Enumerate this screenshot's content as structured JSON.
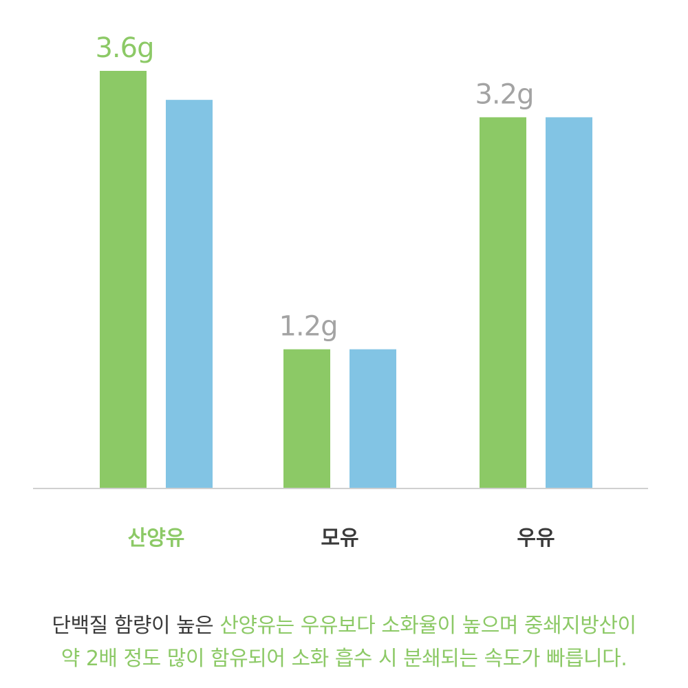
{
  "chart_data": {
    "type": "bar",
    "categories": [
      "산양유",
      "모유",
      "우유"
    ],
    "series": [
      {
        "values": [
          3.6,
          1.2,
          3.2
        ]
      },
      {
        "values": [
          3.35,
          1.2,
          3.2
        ]
      }
    ],
    "data_labels": [
      "3.6g",
      "1.2g",
      "3.2g"
    ],
    "ylim": [
      0,
      3.6
    ],
    "grid": false,
    "colors": {
      "series_1": "#8cc966",
      "series_2": "#82c4e4",
      "highlight_label": "#8cc966",
      "label": "#a3a3a3",
      "category_text": "#3a3a3a",
      "axis": "#d0d0d0"
    },
    "highlight_category_index": 0
  },
  "caption": {
    "line1_prefix": "단백질 함량이 높은 ",
    "line1_highlight": "산양유는 우유보다 소화율이 높으며 중쇄지방산이",
    "line2_highlight": "약 2배 정도 많이 함유되어 소화 흡수 시 분쇄되는 속도가 빠릅니다."
  }
}
